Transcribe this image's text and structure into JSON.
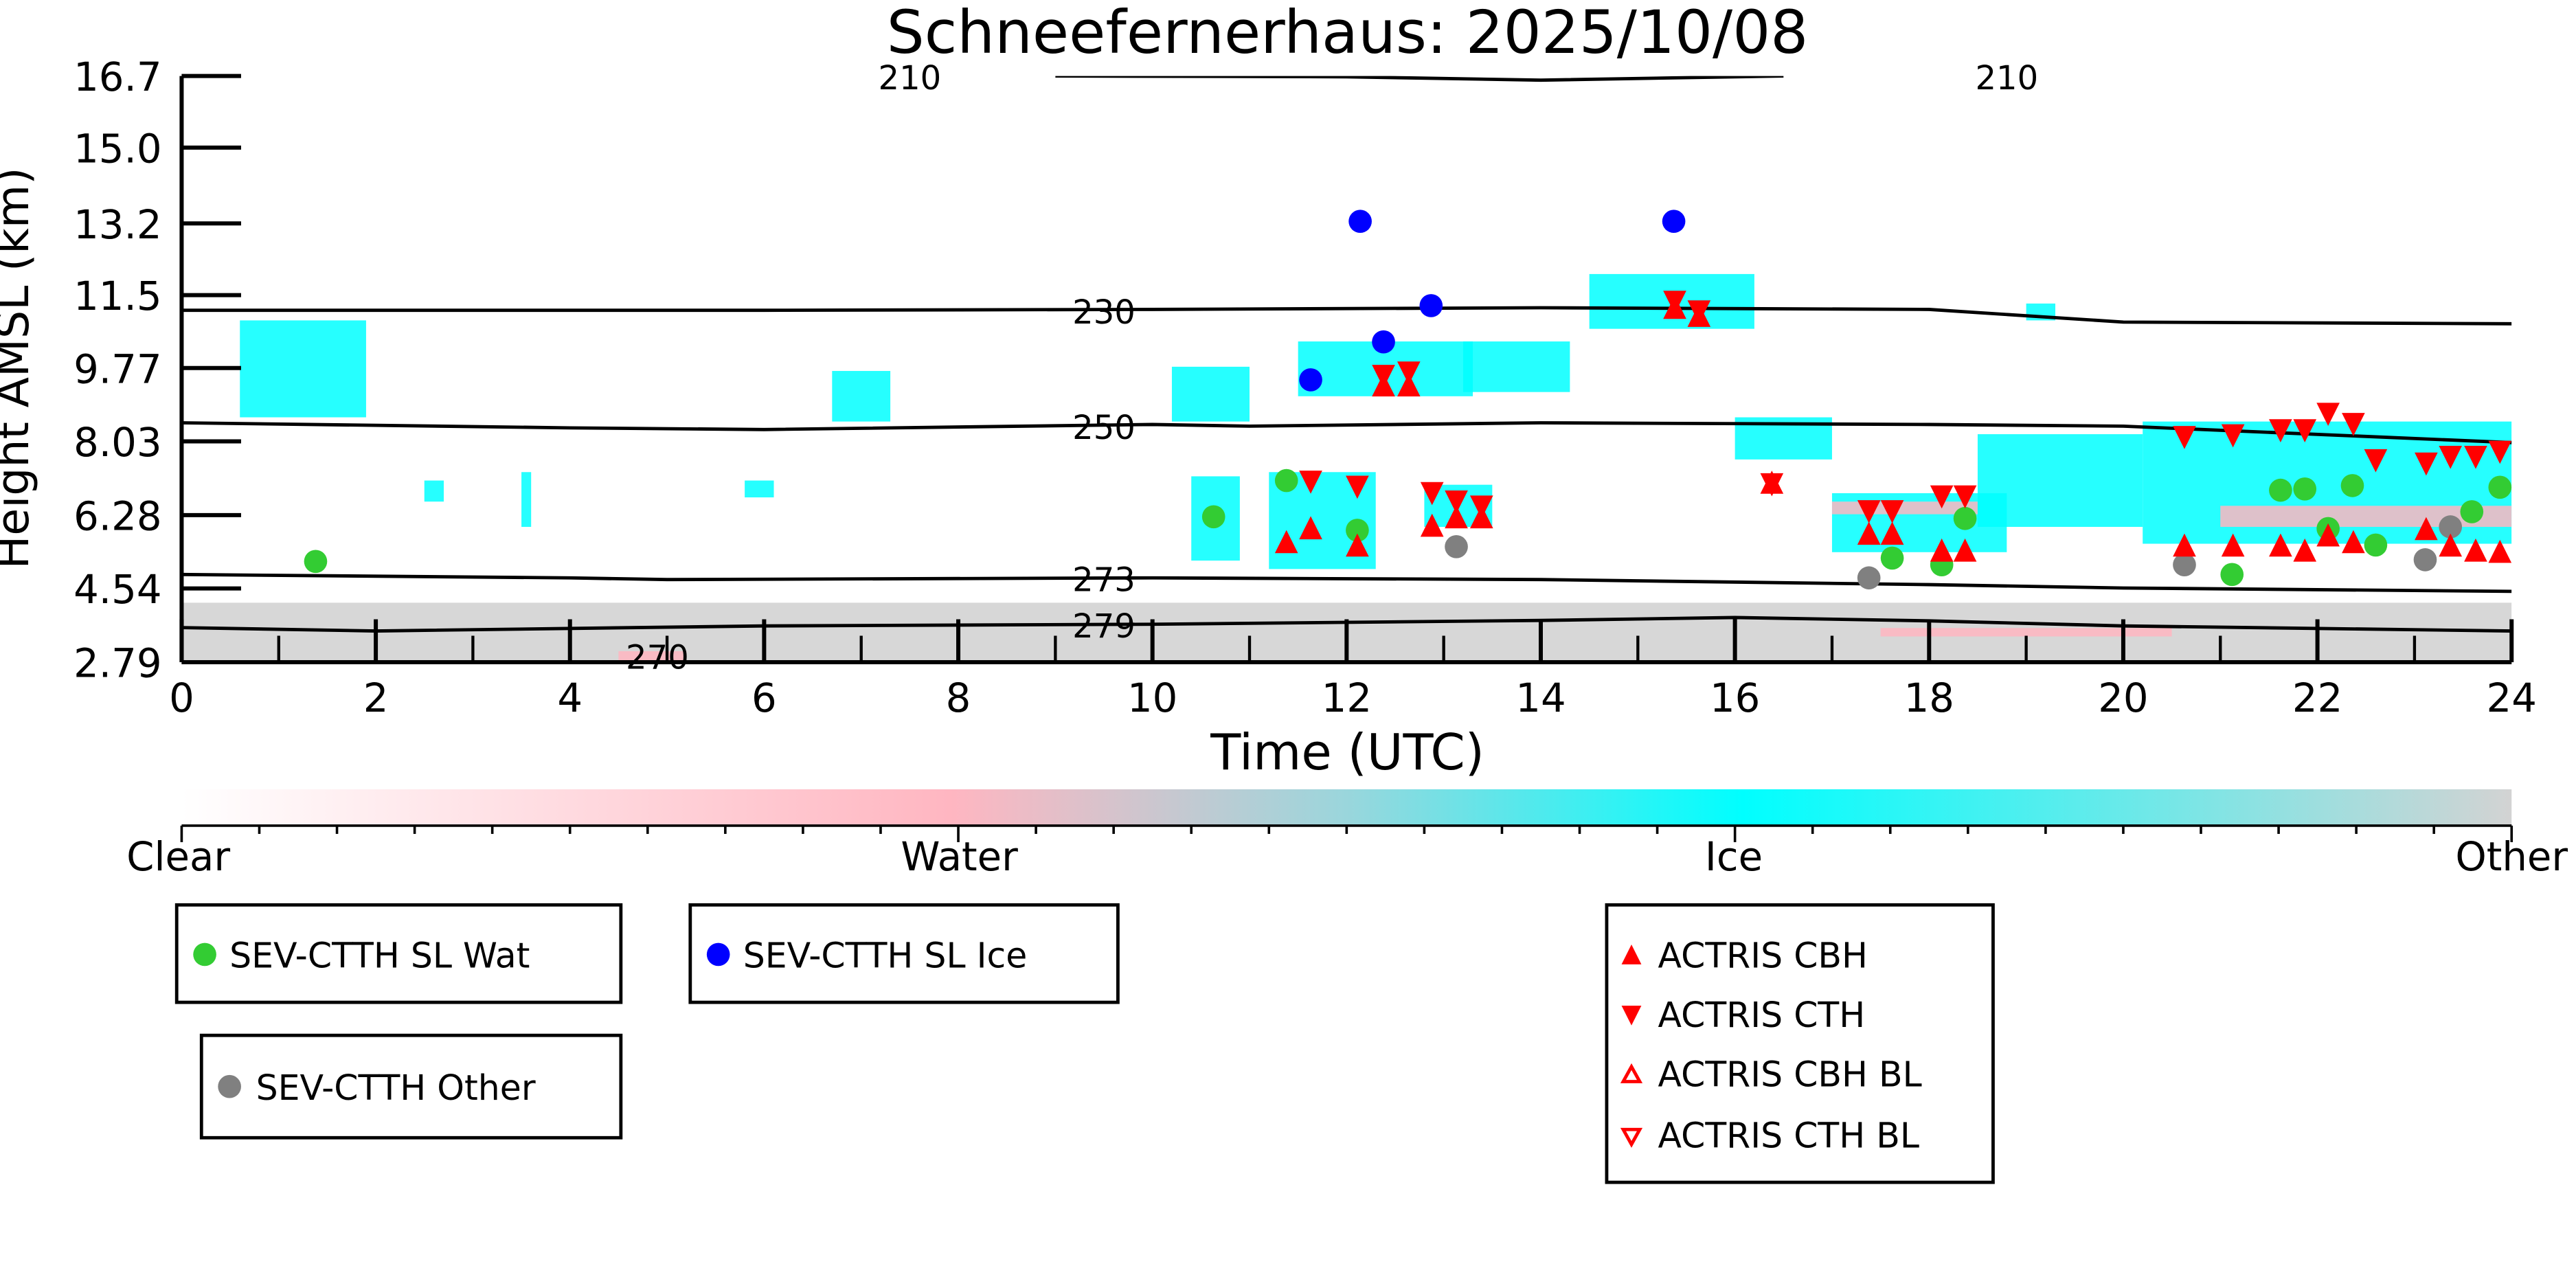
{
  "chart_data": {
    "type": "scatter",
    "title": "Schneefernerhaus: 2025/10/08",
    "xlabel": "Time (UTC)",
    "ylabel": "Height AMSL (km)",
    "xlim": [
      0,
      24
    ],
    "ylim": [
      2.79,
      16.7
    ],
    "xticks": [
      0,
      2,
      4,
      6,
      8,
      10,
      12,
      14,
      16,
      18,
      20,
      22,
      24
    ],
    "yticks": [
      "2.79",
      "4.54",
      "6.28",
      "8.03",
      "9.77",
      "11.5",
      "13.2",
      "15.0",
      "16.7"
    ],
    "colors": {
      "clear": "#ffffff",
      "water": "#ffb6c1",
      "ice": "#00ffff",
      "other": "#d3d3d3",
      "wat": "#33cc33",
      "ice_pt": "#0000ff",
      "other_pt": "#808080",
      "actris": "#ff0000"
    },
    "colorbar": {
      "labels": [
        "Clear",
        "Water",
        "Ice",
        "Other"
      ]
    },
    "isotherms": [
      {
        "label": "210",
        "t": [
          9.0,
          12,
          14,
          16.5
        ],
        "h": [
          16.7,
          16.68,
          16.6,
          16.7
        ]
      },
      {
        "label": "230",
        "t": [
          0,
          6,
          10,
          14,
          18,
          20,
          24
        ],
        "h": [
          11.14,
          11.14,
          11.16,
          11.2,
          11.16,
          10.86,
          10.82
        ]
      },
      {
        "label": "250",
        "t": [
          0,
          4,
          6,
          10,
          11,
          14,
          18,
          20,
          24
        ],
        "h": [
          8.47,
          8.35,
          8.31,
          8.43,
          8.39,
          8.47,
          8.43,
          8.39,
          8.0
        ]
      },
      {
        "label": "273",
        "t": [
          0,
          4,
          5,
          10,
          14,
          18,
          20,
          24
        ],
        "h": [
          4.87,
          4.79,
          4.75,
          4.79,
          4.75,
          4.63,
          4.55,
          4.47
        ]
      },
      {
        "label": "279",
        "t": [
          0,
          2,
          6,
          10,
          14,
          16,
          18,
          20,
          24
        ],
        "h": [
          3.61,
          3.53,
          3.65,
          3.69,
          3.78,
          3.85,
          3.77,
          3.65,
          3.53
        ]
      },
      {
        "label": "270",
        "t": [],
        "h": []
      }
    ],
    "contour_labels": [
      {
        "text": "210",
        "t": 7.5,
        "h": 16.7
      },
      {
        "text": "230",
        "t": 9.5,
        "h": 11.14
      },
      {
        "text": "250",
        "t": 9.5,
        "h": 8.4
      },
      {
        "text": "273",
        "t": 9.5,
        "h": 4.79
      },
      {
        "text": "279",
        "t": 9.5,
        "h": 3.69
      },
      {
        "text": "270",
        "t": 4.9,
        "h": 2.95
      },
      {
        "text": "210",
        "t": 18.8,
        "h": 16.7
      }
    ],
    "cloud_patches": [
      {
        "t": [
          0.6,
          1.9
        ],
        "h": [
          8.6,
          10.9
        ],
        "c": "ice"
      },
      {
        "t": [
          6.7,
          7.3
        ],
        "h": [
          8.5,
          9.7
        ],
        "c": "ice"
      },
      {
        "t": [
          2.5,
          2.7
        ],
        "h": [
          6.6,
          7.1
        ],
        "c": "ice"
      },
      {
        "t": [
          3.5,
          3.6
        ],
        "h": [
          6.0,
          7.3
        ],
        "c": "ice"
      },
      {
        "t": [
          5.8,
          6.1
        ],
        "h": [
          6.7,
          7.1
        ],
        "c": "ice"
      },
      {
        "t": [
          10.2,
          11.0
        ],
        "h": [
          8.5,
          9.8
        ],
        "c": "ice"
      },
      {
        "t": [
          10.4,
          10.9
        ],
        "h": [
          5.2,
          7.2
        ],
        "c": "ice"
      },
      {
        "t": [
          11.2,
          12.3
        ],
        "h": [
          5.0,
          7.3
        ],
        "c": "ice"
      },
      {
        "t": [
          11.5,
          13.3
        ],
        "h": [
          9.1,
          10.4
        ],
        "c": "ice"
      },
      {
        "t": [
          12.8,
          13.5
        ],
        "h": [
          6.0,
          7.0
        ],
        "c": "ice"
      },
      {
        "t": [
          13.2,
          14.3
        ],
        "h": [
          9.2,
          10.4
        ],
        "c": "ice"
      },
      {
        "t": [
          14.5,
          16.2
        ],
        "h": [
          10.7,
          12.0
        ],
        "c": "ice"
      },
      {
        "t": [
          16.0,
          17.0
        ],
        "h": [
          7.6,
          8.6
        ],
        "c": "ice"
      },
      {
        "t": [
          17.0,
          18.8
        ],
        "h": [
          5.4,
          6.8
        ],
        "c": "ice"
      },
      {
        "t": [
          17.0,
          18.5
        ],
        "h": [
          6.3,
          6.6
        ],
        "c": "water"
      },
      {
        "t": [
          18.5,
          20.2
        ],
        "h": [
          6.0,
          8.2
        ],
        "c": "ice"
      },
      {
        "t": [
          19.0,
          19.3
        ],
        "h": [
          10.9,
          11.3
        ],
        "c": "ice"
      },
      {
        "t": [
          20.2,
          24.0
        ],
        "h": [
          5.6,
          8.5
        ],
        "c": "ice"
      },
      {
        "t": [
          21.0,
          24.0
        ],
        "h": [
          6.0,
          6.5
        ],
        "c": "water"
      },
      {
        "t": [
          0,
          24
        ],
        "h": [
          2.79,
          4.2
        ],
        "c": "other"
      },
      {
        "t": [
          4.5,
          5.2
        ],
        "h": [
          2.79,
          3.05
        ],
        "c": "water"
      },
      {
        "t": [
          17.5,
          20.5
        ],
        "h": [
          3.4,
          3.6
        ],
        "c": "water"
      }
    ],
    "series": [
      {
        "name": "SEV-CTTH SL Wat",
        "marker": "circle",
        "color": "#33cc33",
        "t": [
          1.38,
          10.63,
          11.38,
          12.11,
          17.62,
          18.13,
          18.37,
          21.12,
          21.62,
          21.87,
          22.11,
          22.36,
          22.6,
          23.59,
          23.88
        ],
        "h": [
          5.18,
          6.24,
          7.1,
          5.92,
          5.26,
          5.1,
          6.2,
          4.87,
          6.87,
          6.9,
          5.96,
          6.98,
          5.57,
          6.36,
          6.94
        ]
      },
      {
        "name": "SEV-CTTH SL Ice",
        "marker": "circle",
        "color": "#0000ff",
        "t": [
          11.63,
          12.14,
          12.38,
          12.87,
          15.37
        ],
        "h": [
          9.49,
          13.25,
          10.39,
          11.25,
          13.25
        ]
      },
      {
        "name": "SEV-CTTH Other",
        "marker": "circle",
        "color": "#808080",
        "t": [
          13.13,
          17.38,
          20.63,
          23.11,
          23.37
        ],
        "h": [
          5.53,
          4.79,
          5.1,
          5.22,
          6.0
        ]
      },
      {
        "name": "ACTRIS CBH",
        "marker": "triangle-up",
        "color": "#ff0000",
        "t": [
          11.38,
          11.63,
          12.11,
          12.38,
          12.64,
          12.88,
          13.13,
          13.39,
          15.38,
          15.63,
          16.38,
          17.38,
          17.62,
          18.13,
          18.37,
          20.63,
          21.13,
          21.62,
          21.87,
          22.11,
          22.37,
          23.12,
          23.37,
          23.63,
          23.88
        ],
        "h": [
          5.65,
          5.98,
          5.57,
          9.37,
          9.37,
          6.04,
          6.24,
          6.24,
          11.21,
          11.02,
          7.06,
          5.85,
          5.85,
          5.45,
          5.45,
          5.57,
          5.57,
          5.57,
          5.45,
          5.81,
          5.65,
          5.96,
          5.57,
          5.45,
          5.42
        ]
      },
      {
        "name": "ACTRIS CTH",
        "marker": "triangle-down",
        "color": "#ff0000",
        "t": [
          11.63,
          12.11,
          12.38,
          12.64,
          12.88,
          13.13,
          13.39,
          15.38,
          15.63,
          16.38,
          17.38,
          17.62,
          18.13,
          18.37,
          20.63,
          21.13,
          21.62,
          21.87,
          22.11,
          22.37,
          22.6,
          23.12,
          23.37,
          23.63,
          23.88
        ],
        "h": [
          7.06,
          6.94,
          9.57,
          9.65,
          6.79,
          6.59,
          6.47,
          11.33,
          11.1,
          7.0,
          6.36,
          6.36,
          6.71,
          6.71,
          8.12,
          8.16,
          8.28,
          8.28,
          8.67,
          8.43,
          7.57,
          7.49,
          7.65,
          7.65,
          7.77
        ]
      },
      {
        "name": "ACTRIS CBH BL",
        "marker": "triangle-up-open",
        "color": "#ff0000",
        "t": [],
        "h": []
      },
      {
        "name": "ACTRIS CTH BL",
        "marker": "triangle-down-open",
        "color": "#ff0000",
        "t": [],
        "h": []
      }
    ]
  }
}
